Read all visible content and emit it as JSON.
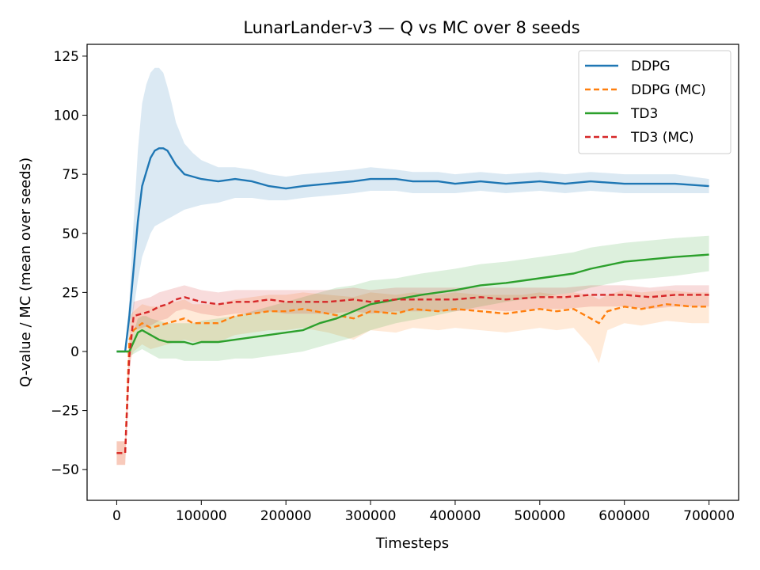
{
  "chart_data": {
    "type": "line",
    "title": "LunarLander-v3 — Q vs MC over 8 seeds",
    "xlabel": "Timesteps",
    "ylabel": "Q-value / MC (mean over seeds)",
    "xlim": [
      -35000,
      735000
    ],
    "ylim": [
      -63,
      130
    ],
    "xticks": [
      0,
      100000,
      200000,
      300000,
      400000,
      500000,
      600000,
      700000
    ],
    "xtick_labels": [
      "0",
      "100000",
      "200000",
      "300000",
      "400000",
      "500000",
      "600000",
      "700000"
    ],
    "yticks": [
      -50,
      -25,
      0,
      25,
      50,
      75,
      100,
      125
    ],
    "ytick_labels": [
      "−50",
      "−25",
      "0",
      "25",
      "50",
      "75",
      "100",
      "125"
    ],
    "grid": false,
    "legend_position": "top-right",
    "series": [
      {
        "name": "DDPG",
        "color": "#1f77b4",
        "dash": "solid",
        "x": [
          0,
          10000,
          15000,
          20000,
          25000,
          30000,
          35000,
          40000,
          45000,
          50000,
          55000,
          60000,
          65000,
          70000,
          80000,
          90000,
          100000,
          120000,
          140000,
          160000,
          180000,
          200000,
          220000,
          250000,
          280000,
          300000,
          330000,
          350000,
          380000,
          400000,
          430000,
          460000,
          500000,
          530000,
          560000,
          600000,
          630000,
          660000,
          700000
        ],
        "y": [
          0,
          0,
          15,
          35,
          55,
          70,
          76,
          82,
          85,
          86,
          86,
          85,
          82,
          79,
          75,
          74,
          73,
          72,
          73,
          72,
          70,
          69,
          70,
          71,
          72,
          73,
          73,
          72,
          72,
          71,
          72,
          71,
          72,
          71,
          72,
          71,
          71,
          71,
          70
        ],
        "upper": [
          0,
          0,
          22,
          55,
          85,
          105,
          113,
          118,
          120,
          120,
          118,
          112,
          105,
          97,
          88,
          84,
          81,
          78,
          78,
          77,
          75,
          74,
          75,
          76,
          77,
          78,
          77,
          76,
          76,
          75,
          76,
          75,
          76,
          75,
          76,
          75,
          75,
          75,
          73
        ],
        "lower": [
          0,
          0,
          8,
          18,
          30,
          40,
          45,
          50,
          53,
          54,
          55,
          56,
          57,
          58,
          60,
          61,
          62,
          63,
          65,
          65,
          64,
          64,
          65,
          66,
          67,
          68,
          68,
          67,
          67,
          67,
          68,
          67,
          68,
          67,
          68,
          67,
          67,
          67,
          67
        ]
      },
      {
        "name": "DDPG (MC)",
        "color": "#ff7f0e",
        "dash": "dashed",
        "x": [
          0,
          10000,
          15000,
          20000,
          30000,
          40000,
          50000,
          60000,
          70000,
          80000,
          90000,
          100000,
          120000,
          140000,
          160000,
          180000,
          200000,
          220000,
          250000,
          280000,
          300000,
          330000,
          350000,
          380000,
          400000,
          430000,
          460000,
          480000,
          500000,
          520000,
          540000,
          560000,
          570000,
          580000,
          600000,
          620000,
          650000,
          680000,
          700000
        ],
        "y": [
          -43,
          -43,
          5,
          9,
          12,
          10,
          11,
          12,
          13,
          14,
          12,
          12,
          12,
          15,
          16,
          17,
          17,
          18,
          16,
          14,
          17,
          16,
          18,
          17,
          18,
          17,
          16,
          17,
          18,
          17,
          18,
          14,
          12,
          17,
          19,
          18,
          20,
          19,
          19
        ],
        "upper": [
          -38,
          -38,
          15,
          17,
          20,
          19,
          19,
          20,
          21,
          22,
          20,
          20,
          20,
          22,
          23,
          24,
          24,
          25,
          24,
          23,
          25,
          24,
          25,
          24,
          25,
          24,
          24,
          24,
          25,
          24,
          25,
          24,
          22,
          24,
          26,
          25,
          26,
          25,
          25
        ],
        "lower": [
          -48,
          -48,
          -5,
          0,
          3,
          1,
          2,
          3,
          4,
          5,
          4,
          4,
          4,
          7,
          8,
          9,
          9,
          10,
          8,
          5,
          9,
          8,
          10,
          9,
          10,
          9,
          8,
          9,
          10,
          9,
          10,
          2,
          -5,
          9,
          12,
          11,
          13,
          12,
          12
        ]
      },
      {
        "name": "TD3",
        "color": "#2ca02c",
        "dash": "solid",
        "x": [
          0,
          10000,
          15000,
          20000,
          25000,
          30000,
          35000,
          40000,
          50000,
          60000,
          70000,
          80000,
          90000,
          100000,
          120000,
          140000,
          160000,
          180000,
          200000,
          220000,
          240000,
          260000,
          280000,
          300000,
          330000,
          360000,
          400000,
          430000,
          460000,
          500000,
          540000,
          560000,
          600000,
          630000,
          660000,
          700000
        ],
        "y": [
          0,
          0,
          0,
          4,
          8,
          9,
          8,
          7,
          5,
          4,
          4,
          4,
          3,
          4,
          4,
          5,
          6,
          7,
          8,
          9,
          12,
          14,
          17,
          20,
          22,
          24,
          26,
          28,
          29,
          31,
          33,
          35,
          38,
          39,
          40,
          41
        ],
        "upper": [
          0,
          0,
          1,
          8,
          14,
          15,
          15,
          14,
          13,
          12,
          12,
          12,
          12,
          13,
          14,
          15,
          17,
          19,
          21,
          23,
          25,
          27,
          28,
          30,
          31,
          33,
          35,
          37,
          38,
          40,
          42,
          44,
          46,
          47,
          48,
          49
        ],
        "lower": [
          0,
          0,
          -2,
          -1,
          0,
          1,
          0,
          -1,
          -3,
          -3,
          -3,
          -4,
          -4,
          -4,
          -4,
          -3,
          -3,
          -2,
          -1,
          0,
          2,
          4,
          6,
          9,
          12,
          14,
          17,
          19,
          21,
          23,
          25,
          27,
          30,
          31,
          32,
          34
        ]
      },
      {
        "name": "TD3 (MC)",
        "color": "#d62728",
        "dash": "dashed",
        "x": [
          0,
          10000,
          15000,
          20000,
          30000,
          40000,
          50000,
          60000,
          70000,
          80000,
          90000,
          100000,
          120000,
          140000,
          160000,
          180000,
          200000,
          220000,
          250000,
          280000,
          300000,
          330000,
          350000,
          380000,
          400000,
          430000,
          460000,
          500000,
          530000,
          560000,
          600000,
          630000,
          660000,
          700000
        ],
        "y": [
          -43,
          -43,
          -2,
          15,
          16,
          17,
          19,
          20,
          22,
          23,
          22,
          21,
          20,
          21,
          21,
          22,
          21,
          21,
          21,
          22,
          21,
          22,
          22,
          22,
          22,
          23,
          22,
          23,
          23,
          24,
          24,
          23,
          24,
          24
        ],
        "upper": [
          -38,
          -38,
          6,
          21,
          22,
          23,
          25,
          26,
          27,
          28,
          27,
          26,
          25,
          26,
          26,
          26,
          26,
          26,
          26,
          27,
          26,
          27,
          27,
          27,
          27,
          27,
          27,
          27,
          27,
          28,
          28,
          27,
          28,
          28
        ],
        "lower": [
          -48,
          -48,
          -10,
          9,
          10,
          11,
          13,
          14,
          17,
          18,
          17,
          16,
          15,
          16,
          16,
          17,
          16,
          16,
          16,
          17,
          16,
          17,
          17,
          17,
          17,
          18,
          17,
          18,
          18,
          19,
          19,
          18,
          19,
          19
        ]
      }
    ]
  }
}
